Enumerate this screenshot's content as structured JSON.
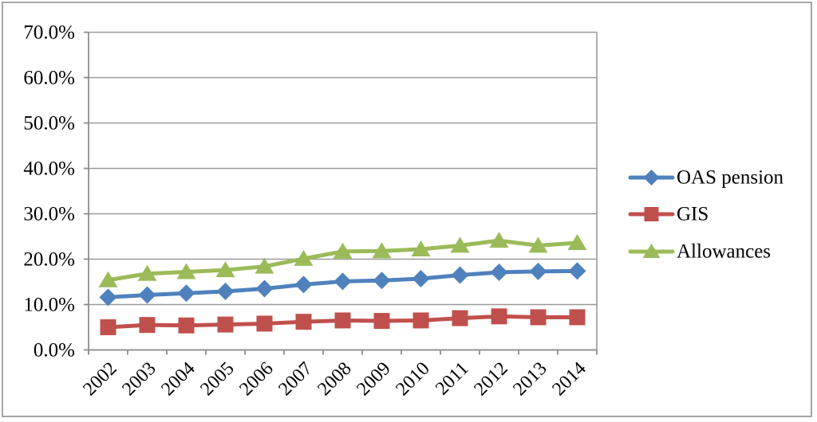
{
  "chart_data": {
    "type": "line",
    "categories": [
      "2002",
      "2003",
      "2004",
      "2005",
      "2006",
      "2007",
      "2008",
      "2009",
      "2010",
      "2011",
      "2012",
      "2013",
      "2014"
    ],
    "series": [
      {
        "name": "OAS pension",
        "color": "#4F81BD",
        "marker": "diamond",
        "values": [
          11.6,
          12.1,
          12.5,
          12.9,
          13.5,
          14.4,
          15.1,
          15.3,
          15.7,
          16.5,
          17.1,
          17.3,
          17.4
        ]
      },
      {
        "name": "GIS",
        "color": "#C0504D",
        "marker": "square",
        "values": [
          5.0,
          5.5,
          5.4,
          5.6,
          5.8,
          6.2,
          6.5,
          6.4,
          6.5,
          7.0,
          7.4,
          7.2,
          7.2
        ]
      },
      {
        "name": "Allowances",
        "color": "#9BBB59",
        "marker": "triangle",
        "values": [
          15.4,
          16.8,
          17.2,
          17.6,
          18.4,
          20.1,
          21.7,
          21.8,
          22.2,
          23.0,
          24.1,
          23.0,
          23.6
        ]
      }
    ],
    "ylim": [
      0,
      70
    ],
    "ytick_step": 10,
    "ytick_labels": [
      "0.0%",
      "10.0%",
      "20.0%",
      "30.0%",
      "40.0%",
      "50.0%",
      "60.0%",
      "70.0%"
    ],
    "grid": true,
    "legend_position": "right",
    "colors": {
      "grid": "#999999",
      "axis": "#8c8c8c",
      "frame_border": "#a6a6a6",
      "text": "#000000"
    }
  }
}
